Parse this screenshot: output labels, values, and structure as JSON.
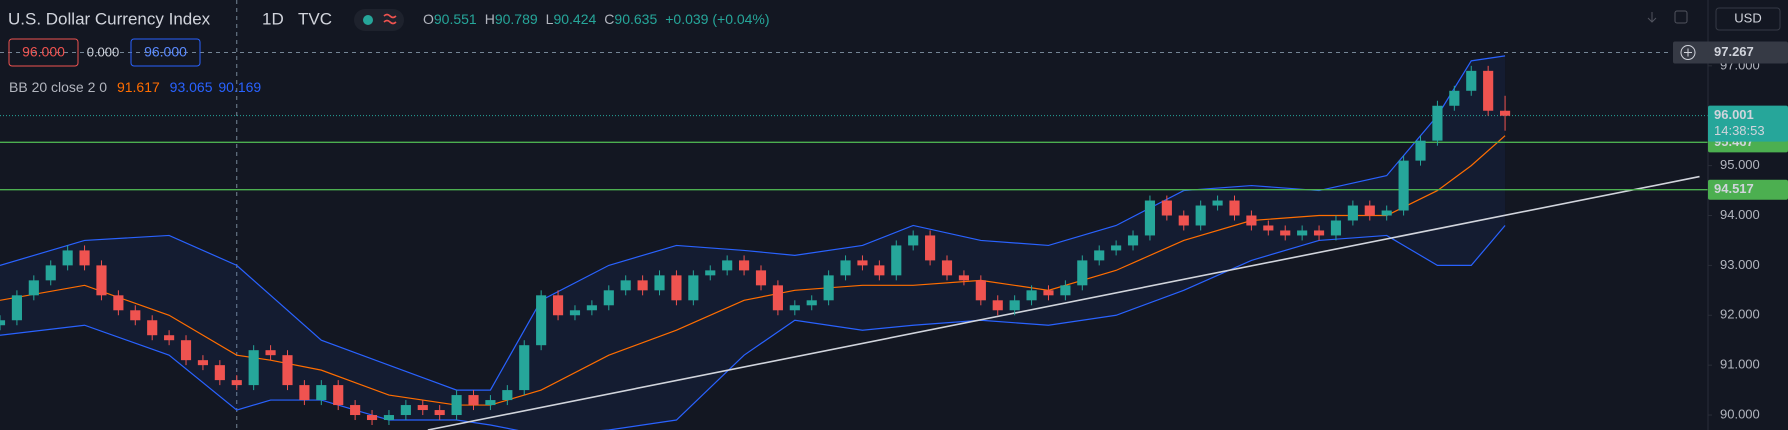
{
  "chart_data": {
    "type": "candlestick",
    "title": "U.S. Dollar Currency Index",
    "interval": "1D",
    "source": "TVC",
    "ohlc_legend": [
      {
        "label": "O",
        "value": 90.551
      },
      {
        "label": "H",
        "value": 90.789
      },
      {
        "label": "L",
        "value": 90.424
      },
      {
        "label": "C",
        "value": 90.635
      }
    ],
    "change": "+0.039 (+0.04%)",
    "order_panel": {
      "sell": "96.000",
      "spread": "0.000",
      "buy": "96.000"
    },
    "indicator": {
      "name": "BB 20 close 2 0",
      "basis": 91.617,
      "upper": 93.065,
      "lower": 90.169
    },
    "currency": "USD",
    "up_color": "#26a69a",
    "down_color": "#ef5350",
    "xlim": [
      0,
      101
    ],
    "ylim": [
      89.7,
      98.32
    ],
    "yticks": [
      {
        "value": 90,
        "label": "90.000"
      },
      {
        "value": 91,
        "label": "91.000"
      },
      {
        "value": 92,
        "label": "92.000"
      },
      {
        "value": 93,
        "label": "93.000"
      },
      {
        "value": 94,
        "label": "94.000"
      },
      {
        "value": 95,
        "label": "95.000"
      },
      {
        "value": 96,
        "label": "96.000"
      },
      {
        "value": 97,
        "label": "97.000"
      }
    ],
    "open": [
      91.8,
      91.9,
      92.4,
      92.7,
      93.0,
      93.3,
      93.0,
      92.4,
      92.1,
      91.9,
      91.6,
      91.5,
      91.1,
      91.0,
      90.7,
      90.6,
      91.3,
      91.2,
      90.6,
      90.3,
      90.6,
      90.2,
      90.0,
      89.9,
      90.0,
      90.2,
      90.1,
      90.0,
      90.4,
      90.2,
      90.3,
      90.5,
      91.4,
      92.4,
      92.0,
      92.1,
      92.2,
      92.5,
      92.7,
      92.5,
      92.8,
      92.3,
      92.8,
      92.9,
      93.1,
      92.9,
      92.6,
      92.1,
      92.2,
      92.3,
      92.8,
      93.1,
      93.0,
      92.8,
      93.4,
      93.6,
      93.1,
      92.8,
      92.7,
      92.3,
      92.1,
      92.3,
      92.5,
      92.4,
      92.6,
      93.1,
      93.3,
      93.4,
      93.6,
      94.3,
      94.0,
      93.8,
      94.2,
      94.3,
      94.0,
      93.8,
      93.7,
      93.6,
      93.7,
      93.6,
      93.9,
      94.2,
      94.0,
      94.1,
      95.1,
      95.5,
      96.2,
      96.5,
      96.9,
      96.1
    ],
    "high": [
      92.0,
      92.5,
      92.8,
      93.1,
      93.4,
      93.4,
      93.1,
      92.5,
      92.2,
      92.0,
      91.7,
      91.6,
      91.2,
      91.1,
      90.8,
      91.4,
      91.4,
      91.3,
      90.7,
      90.7,
      90.7,
      90.3,
      90.1,
      90.1,
      90.3,
      90.3,
      90.2,
      90.5,
      90.5,
      90.4,
      90.6,
      91.5,
      92.5,
      92.5,
      92.2,
      92.3,
      92.6,
      92.8,
      92.8,
      92.9,
      92.9,
      92.9,
      93.0,
      93.2,
      93.2,
      93.0,
      92.7,
      92.3,
      92.4,
      92.9,
      93.2,
      93.2,
      93.1,
      93.5,
      93.7,
      93.7,
      93.2,
      92.9,
      92.8,
      92.4,
      92.4,
      92.6,
      92.6,
      92.7,
      93.2,
      93.4,
      93.5,
      93.7,
      94.4,
      94.4,
      94.1,
      94.3,
      94.4,
      94.4,
      94.1,
      93.9,
      93.8,
      93.8,
      93.8,
      94.0,
      94.3,
      94.3,
      94.2,
      95.2,
      95.6,
      96.3,
      96.6,
      97.0,
      97.0,
      96.4
    ],
    "low": [
      91.7,
      91.8,
      92.3,
      92.6,
      92.9,
      92.9,
      92.3,
      92.0,
      91.8,
      91.5,
      91.4,
      91.0,
      90.9,
      90.6,
      90.5,
      90.5,
      91.1,
      90.5,
      90.2,
      90.2,
      90.1,
      89.9,
      89.8,
      89.8,
      89.9,
      90.0,
      89.9,
      89.9,
      90.1,
      90.1,
      90.2,
      90.4,
      91.3,
      91.9,
      91.9,
      92.0,
      92.1,
      92.4,
      92.4,
      92.4,
      92.2,
      92.2,
      92.7,
      92.8,
      92.8,
      92.5,
      92.0,
      92.0,
      92.1,
      92.2,
      92.7,
      92.9,
      92.7,
      92.7,
      93.3,
      93.0,
      92.7,
      92.6,
      92.2,
      92.0,
      92.0,
      92.2,
      92.3,
      92.3,
      92.5,
      93.0,
      93.2,
      93.3,
      93.5,
      93.9,
      93.7,
      93.7,
      94.1,
      93.9,
      93.7,
      93.6,
      93.5,
      93.5,
      93.5,
      93.5,
      93.8,
      93.9,
      93.9,
      94.0,
      95.0,
      95.4,
      96.1,
      96.4,
      96.0,
      95.7
    ],
    "close": [
      91.9,
      92.4,
      92.7,
      93.0,
      93.3,
      93.0,
      92.4,
      92.1,
      91.9,
      91.6,
      91.5,
      91.1,
      91.0,
      90.7,
      90.6,
      91.3,
      91.2,
      90.6,
      90.3,
      90.6,
      90.2,
      90.0,
      89.9,
      90.0,
      90.2,
      90.1,
      90.0,
      90.4,
      90.2,
      90.3,
      90.5,
      91.4,
      92.4,
      92.0,
      92.1,
      92.2,
      92.5,
      92.7,
      92.5,
      92.8,
      92.3,
      92.8,
      92.9,
      93.1,
      92.9,
      92.6,
      92.1,
      92.2,
      92.3,
      92.8,
      93.1,
      93.0,
      92.8,
      93.4,
      93.6,
      93.1,
      92.8,
      92.7,
      92.3,
      92.1,
      92.3,
      92.5,
      92.4,
      92.6,
      93.1,
      93.3,
      93.4,
      93.6,
      94.3,
      94.0,
      93.8,
      94.2,
      94.3,
      94.0,
      93.8,
      93.7,
      93.6,
      93.7,
      93.6,
      93.9,
      94.2,
      94.0,
      94.1,
      95.1,
      95.5,
      96.2,
      96.5,
      96.9,
      96.1,
      96.0
    ],
    "bands": {
      "x": [
        0,
        5,
        10,
        14,
        16,
        19,
        23,
        27,
        29,
        32,
        36,
        40,
        44,
        47,
        51,
        54,
        58,
        62,
        66,
        70,
        74,
        78,
        82,
        85,
        87,
        89
      ],
      "upper": [
        93.0,
        93.5,
        93.6,
        93.0,
        92.4,
        91.5,
        91.0,
        90.5,
        90.5,
        92.3,
        93.0,
        93.4,
        93.3,
        93.2,
        93.4,
        93.8,
        93.5,
        93.4,
        93.8,
        94.5,
        94.6,
        94.5,
        94.8,
        96.0,
        97.1,
        97.2
      ],
      "basis": [
        92.3,
        92.6,
        92.0,
        91.2,
        91.1,
        90.9,
        90.4,
        90.2,
        90.2,
        90.5,
        91.2,
        91.7,
        92.3,
        92.5,
        92.6,
        92.6,
        92.7,
        92.5,
        92.9,
        93.5,
        93.9,
        94.0,
        94.0,
        94.5,
        95.0,
        95.6
      ],
      "lower": [
        91.6,
        91.8,
        91.2,
        90.1,
        90.3,
        90.3,
        89.9,
        89.9,
        89.8,
        89.6,
        89.7,
        89.9,
        91.2,
        91.9,
        91.7,
        91.8,
        91.9,
        91.8,
        92.0,
        92.5,
        93.1,
        93.5,
        93.6,
        93.0,
        93.0,
        93.8
      ],
      "band_color": "#2962ff",
      "basis_color": "#ff6d00"
    },
    "trendline": {
      "x": [
        25.3,
        100.5
      ],
      "y": [
        89.7,
        94.78
      ],
      "color": "#d1d4dc"
    },
    "levels": [
      {
        "value": 95.467,
        "color": "#4caf50"
      },
      {
        "value": 94.517,
        "color": "#4caf50"
      }
    ],
    "last_price": 96.001,
    "countdown": "14:38:53",
    "crosshair_price": 97.267
  }
}
